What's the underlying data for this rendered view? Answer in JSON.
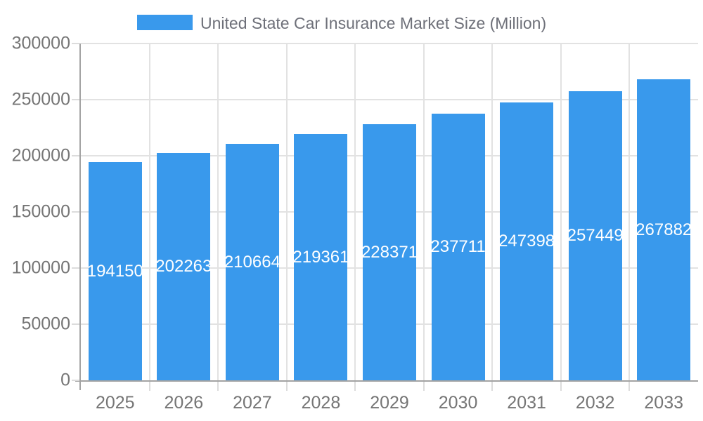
{
  "legend": {
    "label": "United State Car Insurance Market Size (Million)",
    "swatch_color": "#3999ec"
  },
  "chart_data": {
    "type": "bar",
    "title": "United State Car Insurance Market Size (Million)",
    "categories": [
      "2025",
      "2026",
      "2027",
      "2028",
      "2029",
      "2030",
      "2031",
      "2032",
      "2033"
    ],
    "series": [
      {
        "name": "United State Car Insurance Market Size (Million)",
        "values": [
          194150,
          202263,
          210664,
          219361,
          228371,
          237711,
          247398,
          257449,
          267882
        ]
      }
    ],
    "value_labels": [
      "194150",
      "202263",
      "210664",
      "219361",
      "228371",
      "237711",
      "247398",
      "257449",
      "267882"
    ],
    "xlabel": "",
    "ylabel": "",
    "y_ticks": [
      0,
      50000,
      100000,
      150000,
      200000,
      250000,
      300000
    ],
    "ylim": [
      0,
      300000
    ],
    "grid": true,
    "legend_position": "top-center",
    "bar_color": "#3999ec",
    "bar_label_color": "#ffffff",
    "axis_label_color": "#757575",
    "gridline_color": "#e2e2e2",
    "axis_line_color": "#a3a3a3",
    "title_color": "#6e7079"
  }
}
